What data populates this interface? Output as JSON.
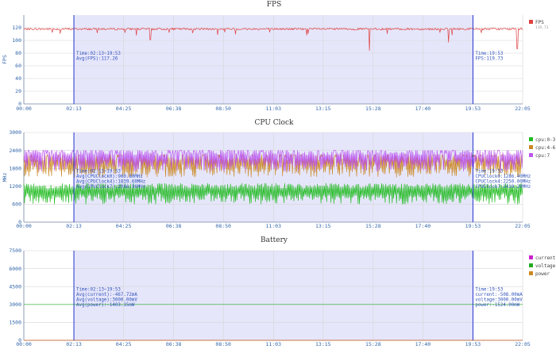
{
  "chart_data": [
    {
      "type": "line",
      "title": "FPS",
      "ylabel": "FPS",
      "xlabel": "",
      "x_ticks": [
        "00:00",
        "02:13",
        "04:25",
        "06:38",
        "08:50",
        "11:03",
        "13:15",
        "15:28",
        "17:40",
        "19:53",
        "22:05"
      ],
      "y_ticks": [
        0,
        20,
        40,
        60,
        80,
        100,
        120
      ],
      "ylim": [
        0,
        140
      ],
      "grid": true,
      "legend_position": "right",
      "series": [
        {
          "name": "FPS",
          "color": "#e04040",
          "baseline": 118,
          "legend_sub": "119.73",
          "dips": [
            [
              5.6,
              101
            ],
            [
              15.3,
              84
            ],
            [
              18.8,
              97
            ],
            [
              21.85,
              87
            ]
          ]
        }
      ],
      "selection": {
        "start": "02:13",
        "end": "19:53"
      },
      "annotation_left": [
        "Time:02:13~19:53",
        "Avg(FPS):117.26"
      ],
      "annotation_right": [
        "Time:19:53",
        "FPS:119.73"
      ]
    },
    {
      "type": "line",
      "title": "CPU Clock",
      "ylabel": "MHz",
      "xlabel": "",
      "x_ticks": [
        "00:00",
        "02:13",
        "04:25",
        "06:38",
        "08:50",
        "11:03",
        "13:15",
        "15:28",
        "17:40",
        "19:53",
        "22:05"
      ],
      "y_ticks": [
        0,
        600,
        1200,
        1800,
        2400,
        3000
      ],
      "ylim": [
        0,
        3000
      ],
      "grid": true,
      "legend_position": "right",
      "series": [
        {
          "name": "cpu:0-3",
          "color": "#22bb22",
          "low": 600,
          "high": 1300
        },
        {
          "name": "cpu:4-6",
          "color": "#cc8822",
          "low": 1500,
          "high": 2250
        },
        {
          "name": "cpu:7",
          "color": "#bb55ee",
          "low": 1700,
          "high": 2400
        }
      ],
      "selection": {
        "start": "02:13",
        "end": "19:53"
      },
      "annotation_left": [
        "Time:02:13~19:53",
        "Avg(CPUClock0):960.80MHz",
        "Avg(CPUClock4):1839.60MHz",
        "Avg(CPUClock7):2066.96MHz"
      ],
      "annotation_right": [
        "Time:19:53",
        "CPUClock0:1286.40MHz",
        "CPUClock4:2250.00MHz",
        "CPUClock7:2419.20MHz"
      ]
    },
    {
      "type": "line",
      "title": "Battery",
      "ylabel": "",
      "xlabel": "",
      "x_ticks": [
        "00:00",
        "02:13",
        "04:25",
        "06:38",
        "08:50",
        "11:03",
        "13:15",
        "15:28",
        "17:40",
        "19:53",
        "22:05"
      ],
      "y_ticks": [
        0,
        1500,
        3000,
        4500,
        6000,
        7500
      ],
      "ylim": [
        0,
        7500
      ],
      "grid": true,
      "legend_position": "right",
      "series": [
        {
          "name": "current",
          "color": "#cc22cc",
          "value": 0
        },
        {
          "name": "voltage",
          "color": "#22aa22",
          "value": 3000
        },
        {
          "name": "power",
          "color": "#cc8822",
          "value": 0
        }
      ],
      "selection": {
        "start": "02:13",
        "end": "19:53"
      },
      "annotation_left": [
        "Time:02:13~19:53",
        "Avg(current):-467.72mA",
        "Avg(voltage):3000.00mV",
        "Avg(power):-1403.15mW"
      ],
      "annotation_right": [
        "Time:19:53",
        "current:-508.00mA",
        "voltage:3000.00mV",
        "power:-1524.00mW"
      ]
    }
  ]
}
